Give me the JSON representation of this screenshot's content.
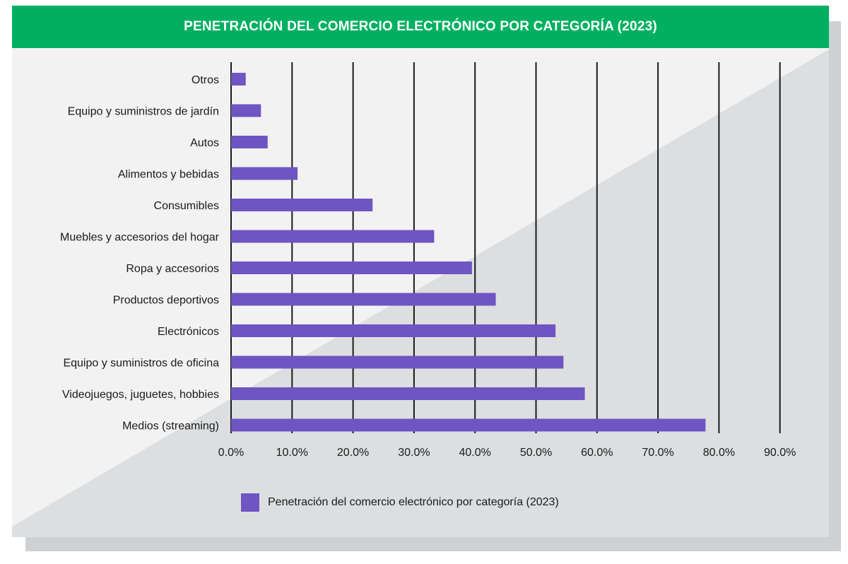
{
  "colors": {
    "header": "#00b060",
    "bar": "#6f55c2",
    "gridline": "#1a1a1a"
  },
  "chart_data": {
    "type": "bar",
    "orientation": "horizontal",
    "title": "PENETRACIÓN DEL COMERCIO ELECTRÓNICO POR CATEGORÍA (2023)",
    "categories": [
      "Otros",
      "Equipo y suministros de jardín",
      "Autos",
      "Alimentos y bebidas",
      "Consumibles",
      "Muebles y accesorios del hogar",
      "Ropa y accesorios",
      "Productos deportivos",
      "Electrónicos",
      "Equipo y suministros de oficina",
      "Videojuegos, juguetes, hobbies",
      "Medios (streaming)"
    ],
    "series": [
      {
        "name": "Penetración del comercio electrónico por categoría (2023)",
        "values": [
          2.4,
          4.9,
          6.0,
          10.9,
          23.2,
          33.3,
          39.5,
          43.4,
          53.2,
          54.5,
          58.0,
          77.8
        ]
      }
    ],
    "xlim": [
      0,
      90
    ],
    "xticks": [
      "0.0%",
      "10.0%",
      "20.0%",
      "30.0%",
      "40.0%",
      "50.0%",
      "60.0%",
      "70.0%",
      "80.0%",
      "90.0%"
    ],
    "grid": "vertical",
    "legend_position": "bottom"
  }
}
